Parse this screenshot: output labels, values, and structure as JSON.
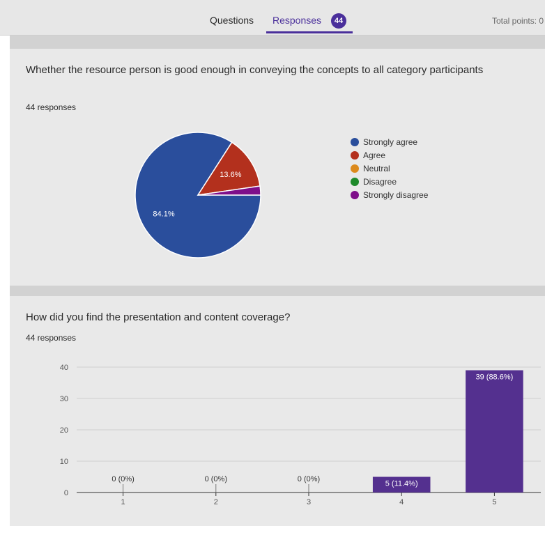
{
  "tabs": {
    "questions": "Questions",
    "responses": "Responses",
    "responses_count": "44",
    "total_points": "Total points: 0"
  },
  "colors": {
    "accent": "#4a2f9b",
    "strongly_agree": "#2a4e9c",
    "agree": "#b3301d",
    "neutral": "#dc8a1c",
    "disagree": "#1e8a2a",
    "strongly_disagree": "#7e0f8a",
    "bar": "#54308f"
  },
  "question1": {
    "title": "Whether the resource person is good enough in conveying the concepts to all category participants",
    "responses": "44 responses"
  },
  "question2": {
    "title": "How did you find the presentation and content coverage?",
    "responses": "44 responses"
  },
  "chart_data": [
    {
      "type": "pie",
      "categories": [
        "Strongly agree",
        "Agree",
        "Neutral",
        "Disagree",
        "Strongly disagree"
      ],
      "values": [
        84.1,
        13.6,
        0,
        0,
        2.3
      ],
      "data_labels": [
        "84.1%",
        "13.6%",
        "",
        "",
        ""
      ],
      "legend": "right"
    },
    {
      "type": "bar",
      "categories": [
        "1",
        "2",
        "3",
        "4",
        "5"
      ],
      "values": [
        0,
        0,
        0,
        5,
        39
      ],
      "data_labels": [
        "0 (0%)",
        "0 (0%)",
        "0 (0%)",
        "5 (11.4%)",
        "39 (88.6%)"
      ],
      "yticks": [
        "0",
        "10",
        "20",
        "30",
        "40"
      ],
      "ylim": [
        0,
        40
      ],
      "grid": true
    }
  ]
}
